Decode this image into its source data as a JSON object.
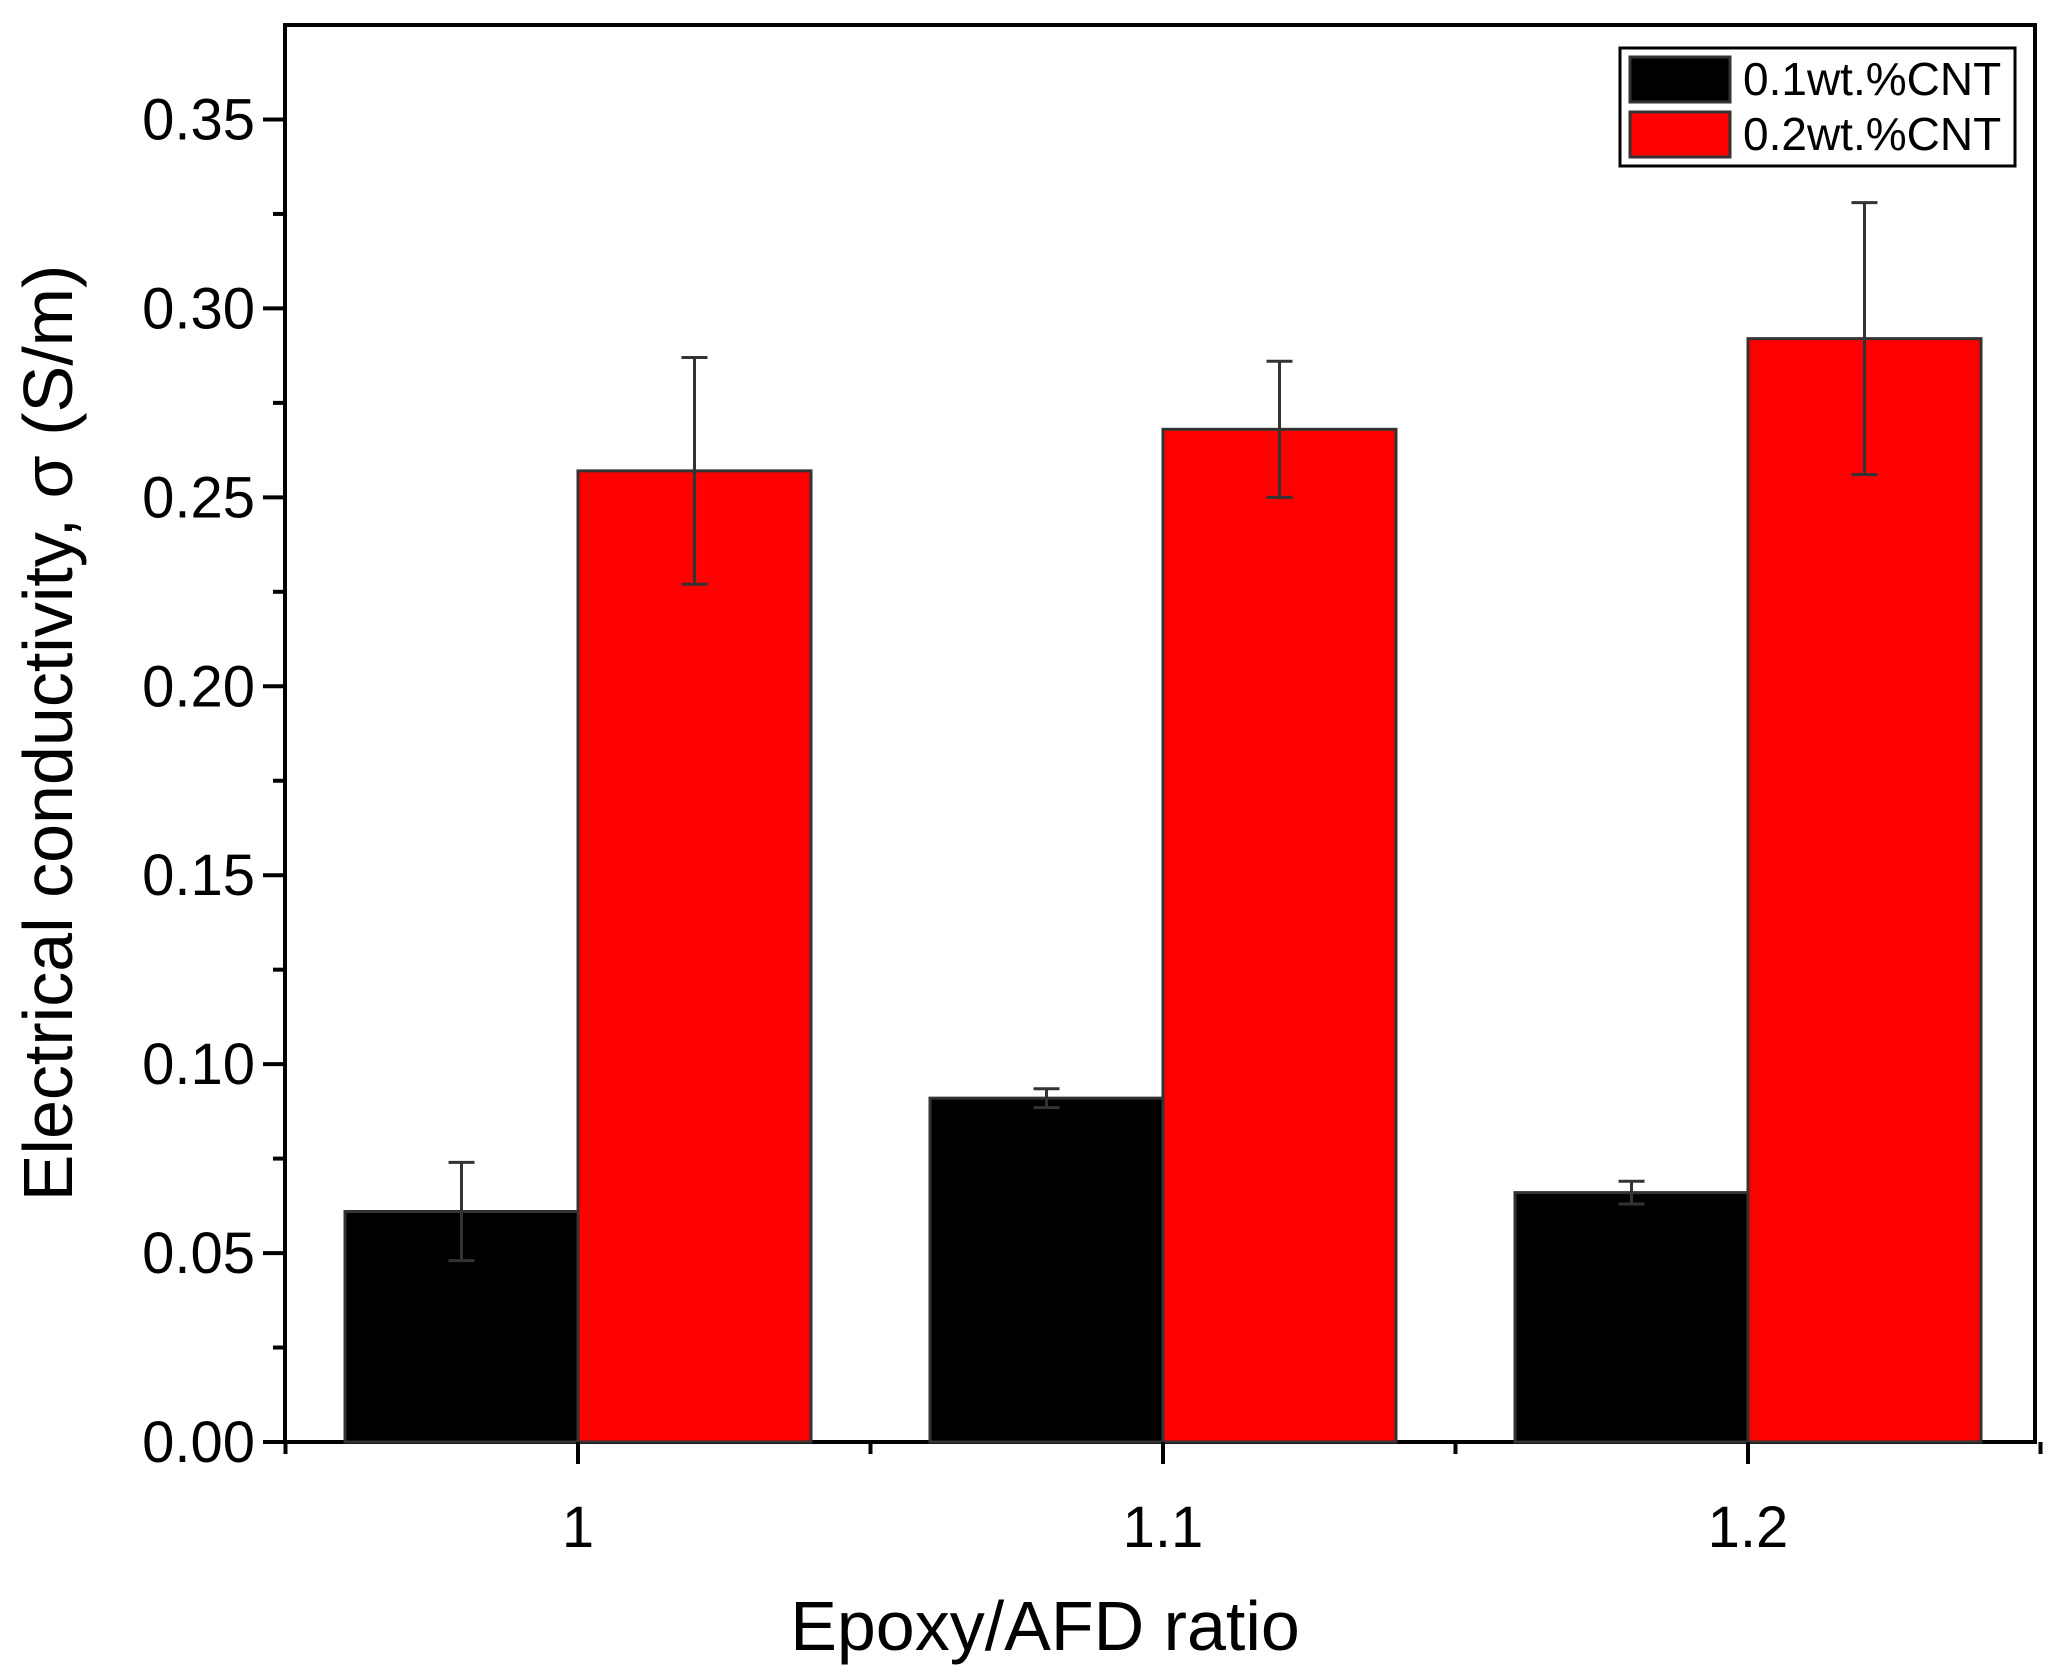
{
  "chart_data": {
    "type": "bar",
    "title": "",
    "xlabel": "Epoxy/AFD ratio",
    "ylabel": "Electrical conductivity, σ (S/m)",
    "categories": [
      "1",
      "1.1",
      "1.2"
    ],
    "ylim": [
      0,
      0.375
    ],
    "yticks": [
      "0.00",
      "0.05",
      "0.10",
      "0.15",
      "0.20",
      "0.25",
      "0.30",
      "0.35"
    ],
    "ytick_values": [
      0,
      0.05,
      0.1,
      0.15,
      0.2,
      0.25,
      0.3,
      0.35
    ],
    "grid": false,
    "legend_position": "top-right",
    "series": [
      {
        "name": "0.1wt.%CNT",
        "color": "#000000",
        "values": [
          0.061,
          0.091,
          0.066
        ],
        "errors": [
          0.013,
          0.0025,
          0.003
        ]
      },
      {
        "name": "0.2wt.%CNT",
        "color": "#ff0000",
        "values": [
          0.257,
          0.268,
          0.292
        ],
        "errors": [
          0.03,
          0.018,
          0.036
        ]
      }
    ]
  }
}
